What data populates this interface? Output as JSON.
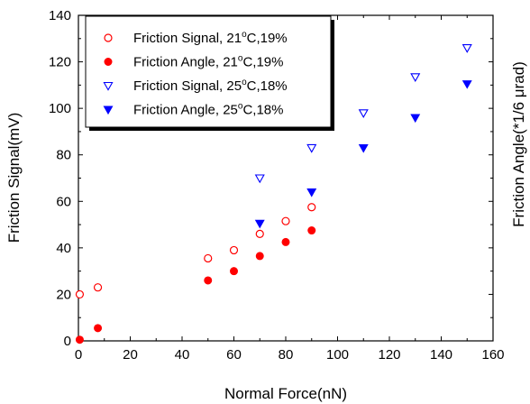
{
  "chart_data": {
    "type": "scatter",
    "xlabel": "Normal Force(nN)",
    "ylabel": "Friction Signal(mV)",
    "y2label": "Friction Angle(*1/6 μrad)",
    "xlim": [
      0,
      160
    ],
    "ylim": [
      0,
      140
    ],
    "xticks": [
      0,
      20,
      40,
      60,
      80,
      100,
      120,
      140,
      160
    ],
    "yticks": [
      0,
      20,
      40,
      60,
      80,
      100,
      120,
      140
    ],
    "grid": false,
    "legend_placement": "top-left",
    "series": [
      {
        "name": "Friction Signal, 21°C,19%",
        "legend_parts": [
          "Friction Signal, 21",
          "o",
          "C,19%"
        ],
        "marker": "circle-open",
        "color": "#ff0000",
        "points": [
          [
            0.5,
            20
          ],
          [
            7.5,
            23
          ],
          [
            50,
            35.5
          ],
          [
            60,
            39
          ],
          [
            70,
            46
          ],
          [
            80,
            51.5
          ],
          [
            90,
            57.5
          ]
        ]
      },
      {
        "name": "Friction Angle, 21°C,19%",
        "legend_parts": [
          "Friction Angle, 21",
          "o",
          "C,19%"
        ],
        "marker": "circle-filled",
        "color": "#ff0000",
        "points": [
          [
            0.5,
            0.5
          ],
          [
            7.5,
            5.5
          ],
          [
            50,
            26
          ],
          [
            60,
            30
          ],
          [
            70,
            36.5
          ],
          [
            80,
            42.5
          ],
          [
            90,
            47.5
          ]
        ]
      },
      {
        "name": "Friction Signal, 25°C,18%",
        "legend_parts": [
          "Friction Signal, 25",
          "o",
          "C,18%"
        ],
        "marker": "triangle-down-open",
        "color": "#0000ff",
        "points": [
          [
            70,
            70
          ],
          [
            90,
            83
          ],
          [
            110,
            98
          ],
          [
            130,
            113.5
          ],
          [
            150,
            126
          ]
        ]
      },
      {
        "name": "Friction Angle, 25°C,18%",
        "legend_parts": [
          "Friction Angle, 25",
          "o",
          "C,18%"
        ],
        "marker": "triangle-down-filled",
        "color": "#0000ff",
        "points": [
          [
            70,
            50.5
          ],
          [
            90,
            64
          ],
          [
            110,
            83
          ],
          [
            130,
            96
          ],
          [
            150,
            110.5
          ]
        ]
      }
    ]
  }
}
